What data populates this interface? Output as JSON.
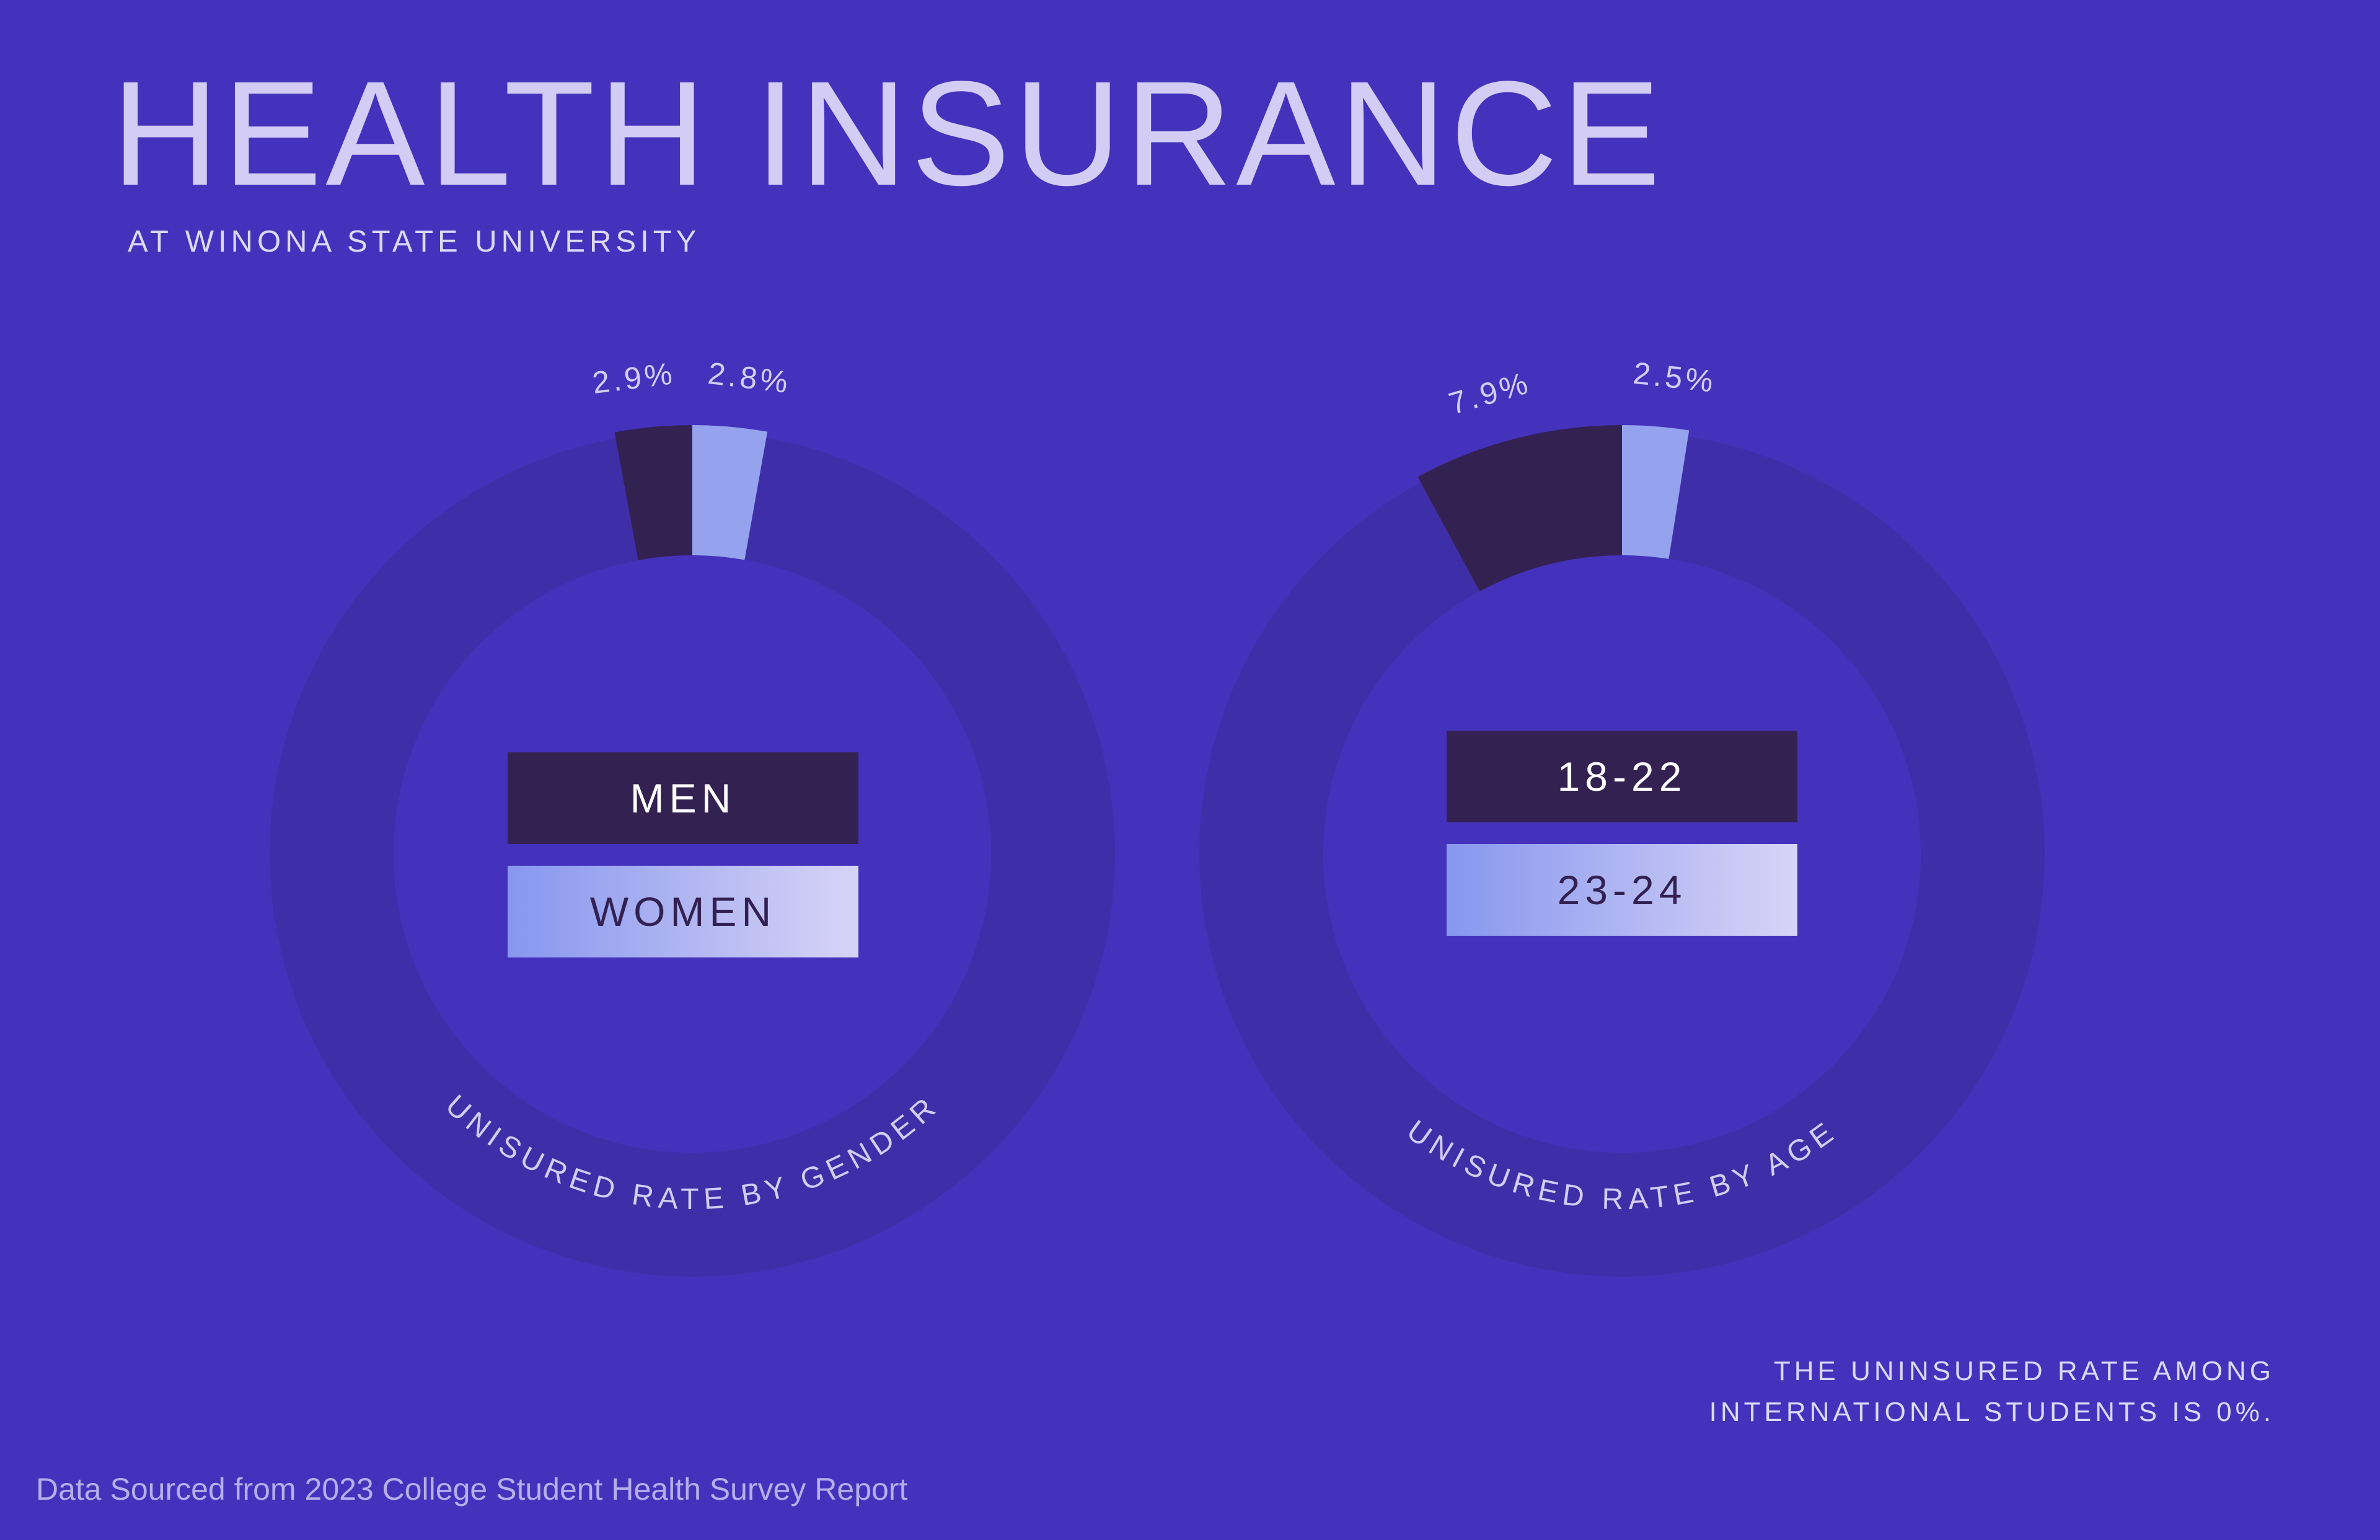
{
  "title": "HEALTH INSURANCE",
  "subtitle": "AT WINONA STATE UNIVERSITY",
  "note": {
    "line1": "THE UNINSURED RATE AMONG",
    "line2": "INTERNATIONAL STUDENTS IS 0%."
  },
  "source": "Data Sourced from 2023 College Student Health Survey Report",
  "colors": {
    "background": "#4432bd",
    "ring": "#3e2fa8",
    "dark_segment": "#332152",
    "light_segment": "#95a3ef",
    "label": "#d3ccf4"
  },
  "chart_data": [
    {
      "type": "pie",
      "title": "UNISURED RATE BY GENDER",
      "categories": [
        "MEN",
        "WOMEN"
      ],
      "values": [
        2.9,
        2.8
      ],
      "value_labels": [
        "2.9%",
        "2.8%"
      ]
    },
    {
      "type": "pie",
      "title": "UNISURED RATE BY AGE",
      "categories": [
        "18-22",
        "23-24"
      ],
      "values": [
        7.9,
        2.5
      ],
      "value_labels": [
        "7.9%",
        "2.5%"
      ]
    }
  ]
}
